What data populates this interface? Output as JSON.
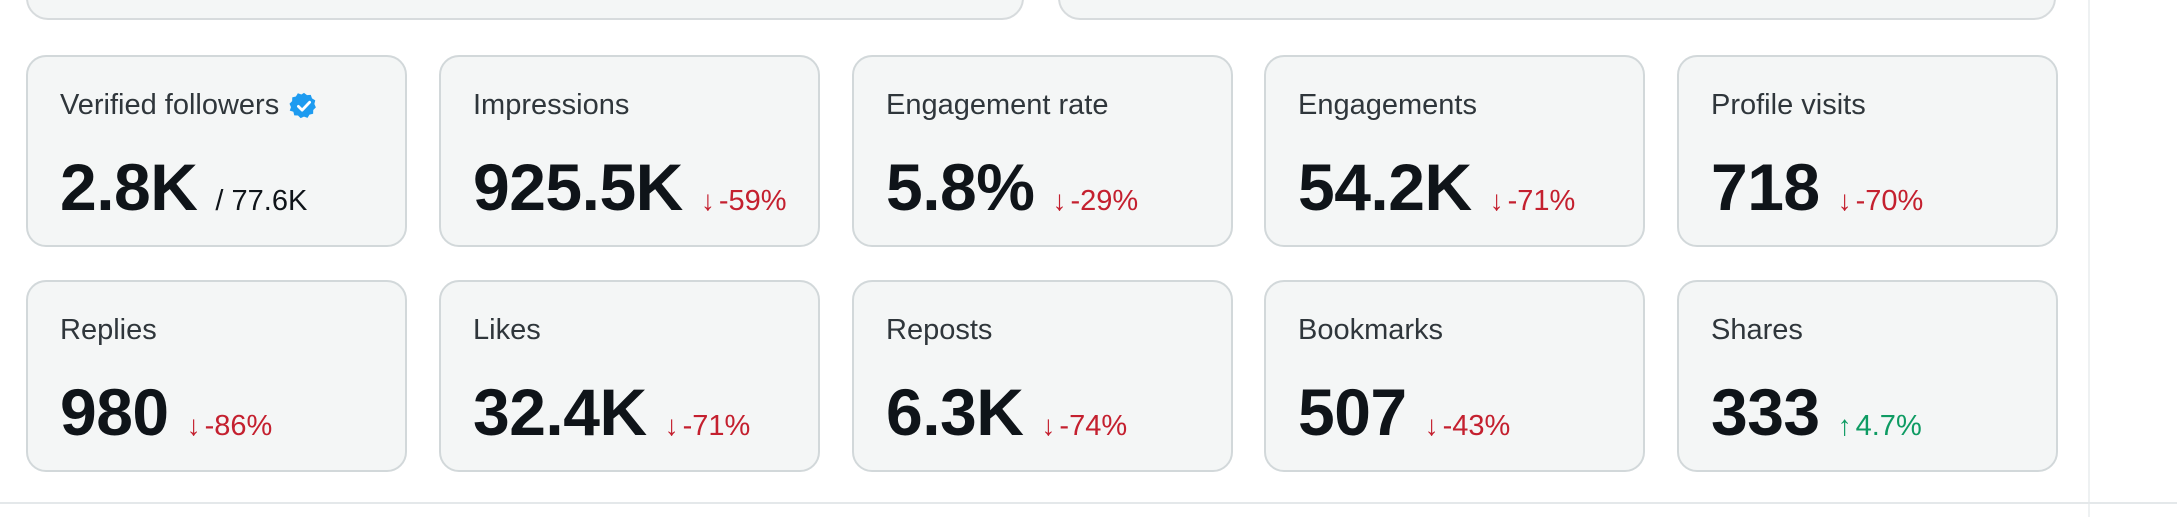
{
  "metrics_row_1": [
    {
      "label": "Verified followers",
      "value": "2.8K",
      "sub": "/ 77.6K",
      "verified_icon": "verified-badge-icon",
      "verified_color": "#1d9bf0"
    },
    {
      "label": "Impressions",
      "value": "925.5K",
      "change": "-59%",
      "direction": "down"
    },
    {
      "label": "Engagement rate",
      "value": "5.8%",
      "change": "-29%",
      "direction": "down"
    },
    {
      "label": "Engagements",
      "value": "54.2K",
      "change": "-71%",
      "direction": "down"
    },
    {
      "label": "Profile visits",
      "value": "718",
      "change": "-70%",
      "direction": "down"
    }
  ],
  "metrics_row_2": [
    {
      "label": "Replies",
      "value": "980",
      "change": "-86%",
      "direction": "down"
    },
    {
      "label": "Likes",
      "value": "32.4K",
      "change": "-71%",
      "direction": "down"
    },
    {
      "label": "Reposts",
      "value": "6.3K",
      "change": "-74%",
      "direction": "down"
    },
    {
      "label": "Bookmarks",
      "value": "507",
      "change": "-43%",
      "direction": "down"
    },
    {
      "label": "Shares",
      "value": "333",
      "change": "4.7%",
      "direction": "up"
    }
  ],
  "icons": {
    "down": "↓",
    "up": "↑"
  },
  "colors": {
    "down": "#c4202f",
    "up": "#0e9b63",
    "card_bg": "#f4f6f6",
    "card_border": "#d2d8da"
  }
}
